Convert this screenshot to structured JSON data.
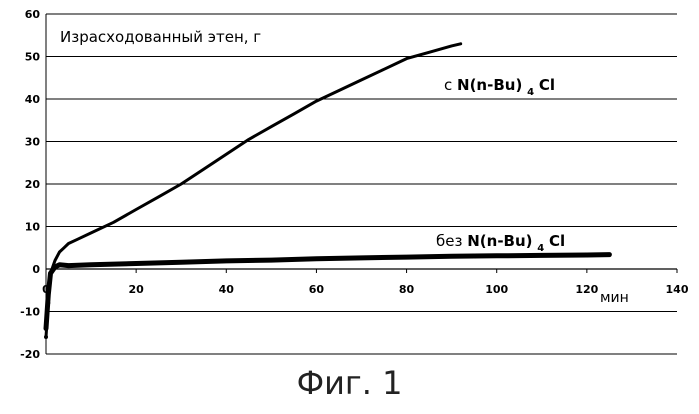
{
  "figure_caption": "Фиг. 1",
  "chart_data": {
    "type": "line",
    "title": "Израсходованный этен, г",
    "xlabel": "мин",
    "ylabel": "",
    "xlim": [
      0,
      140
    ],
    "ylim": [
      -20,
      60
    ],
    "x_ticks": [
      "0",
      "20",
      "40",
      "60",
      "80",
      "100",
      "120",
      "140"
    ],
    "y_ticks": [
      "-20",
      "-10",
      "0",
      "10",
      "20",
      "30",
      "40",
      "50",
      "60"
    ],
    "grid": "horizontal",
    "series": [
      {
        "name": "с N(n-Bu)4Cl",
        "label": {
          "prefix": "с ",
          "main": "N(n-Bu)",
          "sub": "4",
          "suffix": "Cl"
        },
        "color": "#000000",
        "x": [
          0,
          0.5,
          1,
          2,
          3,
          4,
          5,
          7,
          10,
          15,
          20,
          25,
          30,
          35,
          40,
          45,
          50,
          55,
          60,
          65,
          70,
          75,
          80,
          85,
          90,
          92
        ],
        "y": [
          -16,
          -8,
          -1,
          2,
          4,
          5,
          6,
          7,
          8.5,
          11,
          14,
          17,
          20,
          23.5,
          27,
          30.5,
          33.5,
          36.5,
          39.5,
          42,
          44.5,
          47,
          49.5,
          51,
          52.5,
          53
        ]
      },
      {
        "name": "без N(n-Bu)4Cl",
        "label": {
          "prefix": "без ",
          "main": "N(n-Bu)",
          "sub": "4",
          "suffix": "Cl"
        },
        "color": "#000000",
        "x": [
          0,
          0.5,
          1,
          2,
          3,
          5,
          10,
          20,
          30,
          40,
          50,
          60,
          70,
          80,
          90,
          100,
          110,
          120,
          125
        ],
        "y": [
          -14,
          -6,
          -1,
          0.5,
          1,
          0.8,
          1,
          1.3,
          1.6,
          1.9,
          2.1,
          2.4,
          2.6,
          2.8,
          3.0,
          3.1,
          3.2,
          3.3,
          3.4
        ]
      }
    ]
  }
}
